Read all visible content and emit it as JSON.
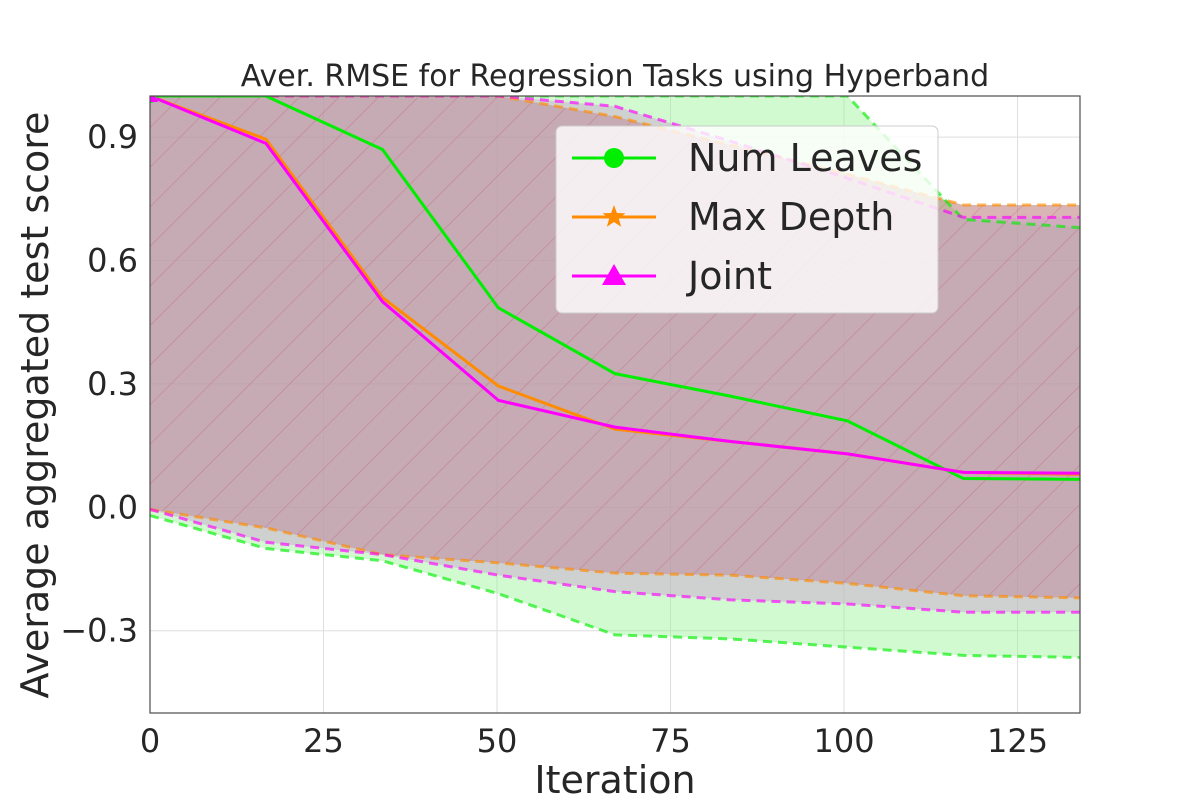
{
  "chart_data": {
    "type": "line",
    "title": "Aver. RMSE for Regression Tasks using Hyperband",
    "xlabel": "Iteration",
    "ylabel": "Average aggregated test score",
    "xlim": [
      0,
      134
    ],
    "ylim": [
      -0.5,
      1.0
    ],
    "xticks": [
      0,
      25,
      50,
      75,
      100,
      125
    ],
    "xtick_labels": [
      "0",
      "25",
      "50",
      "75",
      "100",
      "125"
    ],
    "yticks": [
      -0.3,
      0.0,
      0.3,
      0.6,
      0.9
    ],
    "ytick_labels": [
      "−0.3",
      "0.0",
      "0.3",
      "0.6",
      "0.9"
    ],
    "grid": true,
    "legend_position": "top-right",
    "series": [
      {
        "name": "Num Leaves",
        "color": "#00ee00",
        "marker": "circle",
        "x": [
          0,
          16.7,
          33.5,
          50.2,
          67,
          83.7,
          100.5,
          117.2,
          134
        ],
        "y": [
          1.0,
          1.0,
          0.87,
          0.485,
          0.325,
          0.27,
          0.21,
          0.07,
          0.068
        ],
        "upper": [
          1.0,
          1.0,
          1.0,
          1.0,
          1.0,
          1.0,
          1.0,
          0.7,
          0.68
        ],
        "lower": [
          -0.02,
          -0.1,
          -0.13,
          -0.21,
          -0.31,
          -0.32,
          -0.34,
          -0.36,
          -0.365
        ],
        "band_fill": "#99f599",
        "band_opacity": 0.45
      },
      {
        "name": "Max Depth",
        "color": "#ff8c00",
        "marker": "star",
        "x": [
          0,
          16.7,
          33.5,
          50.2,
          67,
          83.7,
          100.5,
          117.2,
          134
        ],
        "y": [
          1.0,
          0.895,
          0.51,
          0.295,
          0.19,
          0.16,
          0.13,
          0.085,
          0.08
        ],
        "upper": [
          1.0,
          1.0,
          1.0,
          1.0,
          0.95,
          0.88,
          0.81,
          0.735,
          0.735
        ],
        "lower": [
          -0.005,
          -0.05,
          -0.115,
          -0.135,
          -0.16,
          -0.165,
          -0.185,
          -0.215,
          -0.22
        ],
        "band_fill": "#b56c6c",
        "band_opacity": 0.5
      },
      {
        "name": "Joint",
        "color": "#ff00ff",
        "marker": "triangle",
        "x": [
          0,
          16.7,
          33.5,
          50.2,
          67,
          83.7,
          100.5,
          117.2,
          134
        ],
        "y": [
          1.0,
          0.885,
          0.5,
          0.26,
          0.195,
          0.16,
          0.13,
          0.085,
          0.083
        ],
        "upper": [
          1.0,
          1.0,
          1.0,
          1.0,
          0.975,
          0.89,
          0.8,
          0.705,
          0.705
        ],
        "lower": [
          -0.005,
          -0.085,
          -0.115,
          -0.165,
          -0.205,
          -0.225,
          -0.235,
          -0.255,
          -0.255
        ],
        "band_fill": "#c9a0cf",
        "band_opacity": 0.45
      }
    ]
  }
}
